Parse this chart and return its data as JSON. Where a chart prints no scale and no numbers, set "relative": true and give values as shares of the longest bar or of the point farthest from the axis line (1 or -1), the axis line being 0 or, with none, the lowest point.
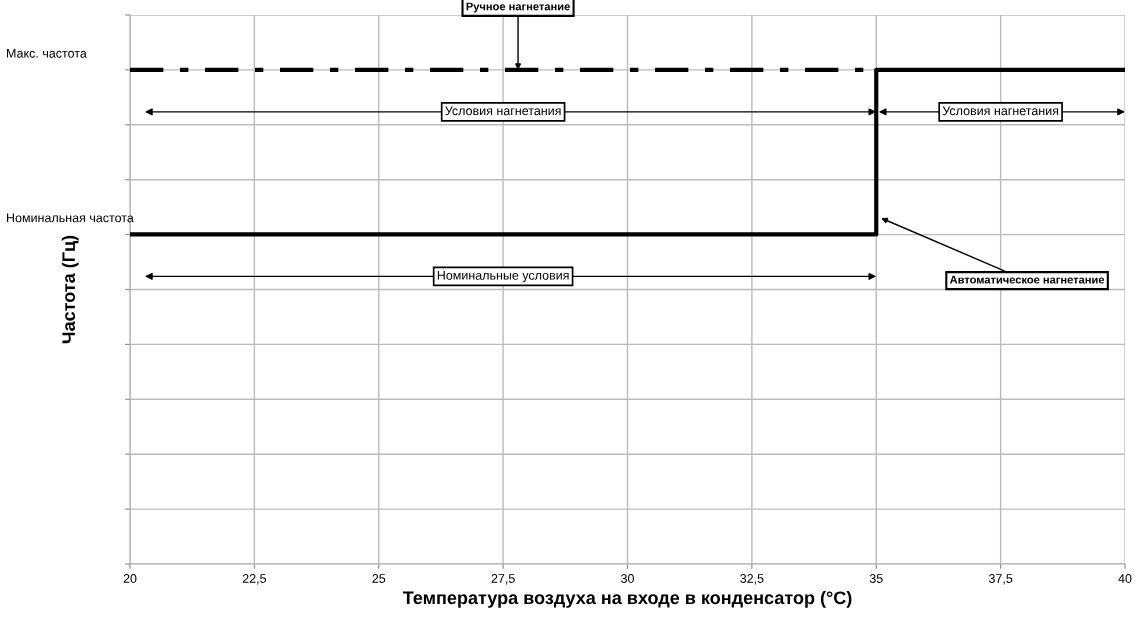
{
  "chart_data": {
    "type": "step",
    "relative": true,
    "xlabel": "Температура воздуха на входе в конденсатор (°C)",
    "ylabel": "Частота (Гц)",
    "xlim": [
      20,
      40
    ],
    "xticks": [
      20,
      {
        "value": 22.5,
        "label": "22,5"
      },
      25,
      {
        "value": 27.5,
        "label": "27,5"
      },
      30,
      {
        "value": 32.5,
        "label": "32,5"
      },
      35,
      {
        "value": 37.5,
        "label": "37,5"
      },
      40
    ],
    "grid": true,
    "series": [
      {
        "color": "#000000",
        "line_style": "solid",
        "x": [
          20,
          35,
          35,
          40
        ],
        "values": [
          0.667,
          0.667,
          1,
          1
        ]
      },
      {
        "color": "#000000",
        "line_style": "dashed",
        "x": [
          20,
          35
        ],
        "values": [
          1,
          1
        ]
      }
    ],
    "annotations": [
      "Макс. частота",
      "Номинальная частота",
      {
        "text": "Ручное нагнетание",
        "x": 27.8,
        "y": 1
      },
      {
        "text": "Автоматическое нагнетание",
        "x": 35.1,
        "y": 0.7
      },
      "Условия нагнетания",
      "Условия нагнетания",
      "Номинальные условия"
    ]
  }
}
